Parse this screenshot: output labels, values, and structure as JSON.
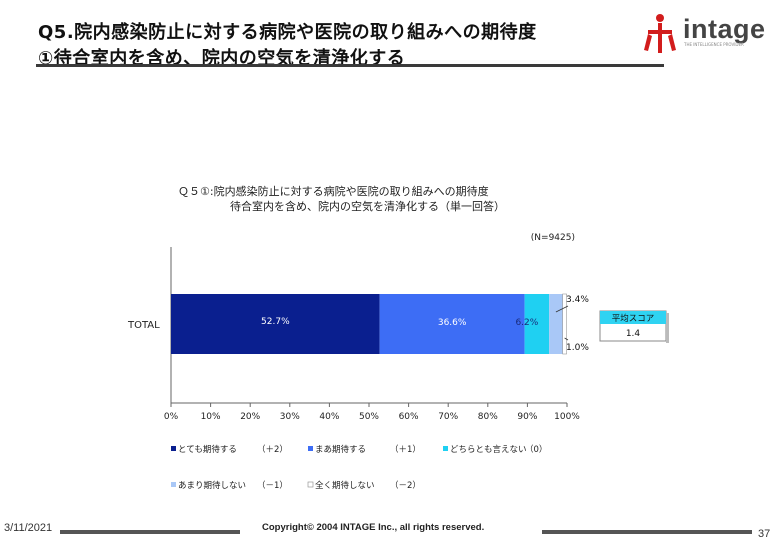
{
  "slide": {
    "title_line1": "Q5.院内感染防止に対する病院や医院の取り組みへの期待度",
    "title_line2": "①待合室内を含め、院内の空気を清浄化する"
  },
  "logo": {
    "text": "intage",
    "subtext": "THE INTELLIGENCE PROVIDER"
  },
  "footer": {
    "date": "3/11/2021",
    "copyright": "Copyright© 2004 INTAGE Inc., all rights reserved.",
    "page": "37"
  },
  "colors": {
    "very_expect": "#0a1f8f",
    "somewhat_expect": "#3d6df5",
    "neither": "#1fd0f2",
    "not_much": "#a9c8f7",
    "not_at_all": "#ffffff"
  },
  "chart_data": {
    "type": "bar",
    "orientation": "horizontal",
    "stacked": true,
    "title_line1": "Ｑ５①:院内感染防止に対する病院や医院の取り組みへの期待度",
    "title_line2": "待合室内を含め、院内の空気を清浄化する（単一回答）",
    "sample_note": "(N=9425)",
    "categories": [
      "TOTAL"
    ],
    "series": [
      {
        "name": "とても期待する",
        "score": "（＋2）",
        "value": 52.7,
        "label": "52.7%"
      },
      {
        "name": "まあ期待する",
        "score": "（＋1）",
        "value": 36.6,
        "label": "36.6%"
      },
      {
        "name": "どちらとも言えない",
        "score": "（0）",
        "value": 6.2,
        "label": "6.2%"
      },
      {
        "name": "あまり期待しない",
        "score": "（－1）",
        "value": 3.4,
        "label": "3.4%"
      },
      {
        "name": "全く期待しない",
        "score": "（－2）",
        "value": 1.0,
        "label": "1.0%"
      }
    ],
    "x_ticks": [
      "0%",
      "10%",
      "20%",
      "30%",
      "40%",
      "50%",
      "60%",
      "70%",
      "80%",
      "90%",
      "100%"
    ],
    "xlim": [
      0,
      100
    ],
    "average_score": {
      "label": "平均スコア",
      "value": "1.4"
    },
    "legend_position": "bottom"
  }
}
